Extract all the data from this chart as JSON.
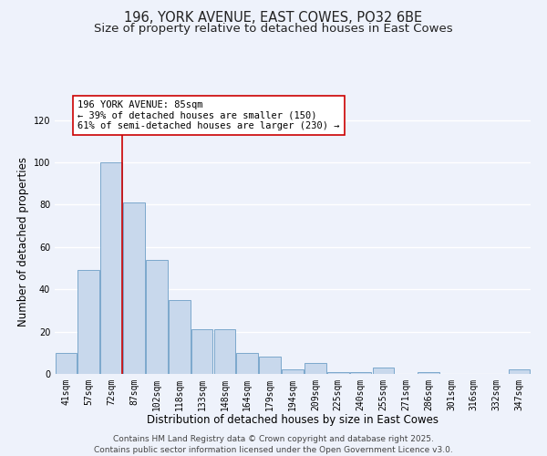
{
  "title": "196, YORK AVENUE, EAST COWES, PO32 6BE",
  "subtitle": "Size of property relative to detached houses in East Cowes",
  "xlabel": "Distribution of detached houses by size in East Cowes",
  "ylabel": "Number of detached properties",
  "categories": [
    "41sqm",
    "57sqm",
    "72sqm",
    "87sqm",
    "102sqm",
    "118sqm",
    "133sqm",
    "148sqm",
    "164sqm",
    "179sqm",
    "194sqm",
    "209sqm",
    "225sqm",
    "240sqm",
    "255sqm",
    "271sqm",
    "286sqm",
    "301sqm",
    "316sqm",
    "332sqm",
    "347sqm"
  ],
  "values": [
    10,
    49,
    100,
    81,
    54,
    35,
    21,
    21,
    10,
    8,
    2,
    5,
    1,
    1,
    3,
    0,
    1,
    0,
    0,
    0,
    2
  ],
  "bar_color": "#c8d8ec",
  "bar_edge_color": "#7ca8cc",
  "vline_x_index": 2,
  "vline_color": "#cc0000",
  "annotation_text": "196 YORK AVENUE: 85sqm\n← 39% of detached houses are smaller (150)\n61% of semi-detached houses are larger (230) →",
  "annotation_box_color": "#ffffff",
  "annotation_box_edge_color": "#cc0000",
  "ylim": [
    0,
    125
  ],
  "yticks": [
    0,
    20,
    40,
    60,
    80,
    100,
    120
  ],
  "background_color": "#eef2fb",
  "grid_color": "#ffffff",
  "footer_line1": "Contains HM Land Registry data © Crown copyright and database right 2025.",
  "footer_line2": "Contains public sector information licensed under the Open Government Licence v3.0.",
  "title_fontsize": 10.5,
  "subtitle_fontsize": 9.5,
  "xlabel_fontsize": 8.5,
  "ylabel_fontsize": 8.5,
  "tick_fontsize": 7,
  "footer_fontsize": 6.5,
  "annotation_fontsize": 7.5
}
